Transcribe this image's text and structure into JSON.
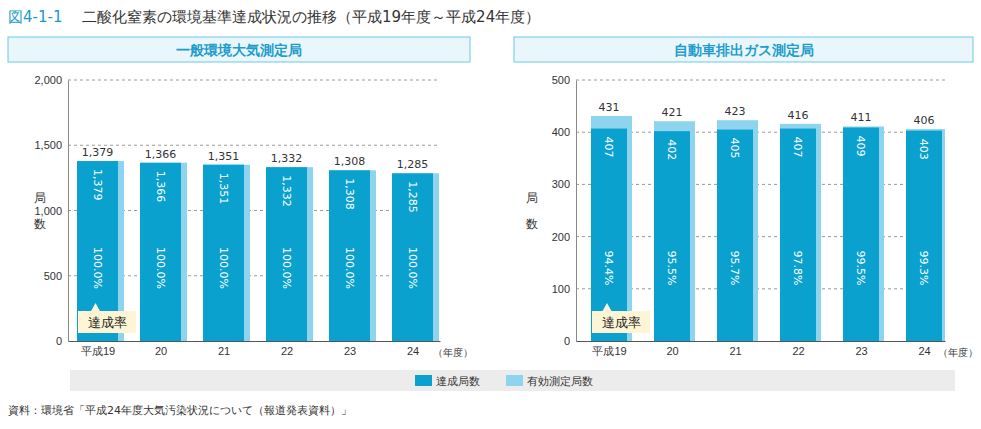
{
  "figure_number": "図4-1-1",
  "figure_title": "二酸化窒素の環境基準達成状況の推移（平成19年度～平成24年度）",
  "source": "資料：環境省「平成24年度大気汚染状況について（報道発表資料）」",
  "chart_data": [
    {
      "type": "bar",
      "title": "一般環境大気測定局",
      "x_label": "（年度）",
      "y_label": "局数",
      "categories": [
        "平成19",
        "20",
        "21",
        "22",
        "23",
        "24"
      ],
      "series": [
        {
          "name": "達成局数",
          "color": "#0ba1cf",
          "values": [
            1379,
            1366,
            1351,
            1332,
            1308,
            1285
          ],
          "value_labels": [
            "1,379",
            "1,366",
            "1,351",
            "1,332",
            "1,308",
            "1,285"
          ]
        },
        {
          "name": "有効測定局数",
          "color": "#8fd4ef",
          "values": [
            1379,
            1366,
            1351,
            1332,
            1308,
            1285
          ],
          "value_labels": [
            "1,379",
            "1,366",
            "1,351",
            "1,332",
            "1,308",
            "1,285"
          ]
        }
      ],
      "rates": [
        100.0,
        100.0,
        100.0,
        100.0,
        100.0,
        100.0
      ],
      "rate_labels": [
        "100.0%",
        "100.0%",
        "100.0%",
        "100.0%",
        "100.0%",
        "100.0%"
      ],
      "annotation": "達成率",
      "ylim": [
        0,
        2000
      ],
      "yticks": [
        0,
        500,
        {
          "value": 1000,
          "label": "1,000"
        },
        {
          "value": 1500,
          "label": "1,500"
        },
        {
          "value": 2000,
          "label": "2,000"
        }
      ],
      "grid": true,
      "data_labels": true,
      "legend": "bottom"
    },
    {
      "type": "bar",
      "title": "自動車排出ガス測定局",
      "x_label": "（年度）",
      "y_label": "局数",
      "categories": [
        "平成19",
        "20",
        "21",
        "22",
        "23",
        "24"
      ],
      "series": [
        {
          "color": "#0ba1cf",
          "values": [
            407,
            402,
            405,
            407,
            409,
            403
          ]
        },
        {
          "color": "#8fd4ef",
          "values": [
            431,
            421,
            423,
            416,
            411,
            406
          ]
        }
      ],
      "rates": [
        94.4,
        95.5,
        95.7,
        97.8,
        99.5,
        99.3
      ],
      "rate_labels": [
        "94.4%",
        "95.5%",
        "95.7%",
        "97.8%",
        "99.5%",
        "99.3%"
      ],
      "annotation": "達成率",
      "ylim": [
        0,
        500
      ],
      "yticks": [
        0,
        100,
        200,
        300,
        400,
        500
      ],
      "grid": true,
      "data_labels": true
    }
  ]
}
